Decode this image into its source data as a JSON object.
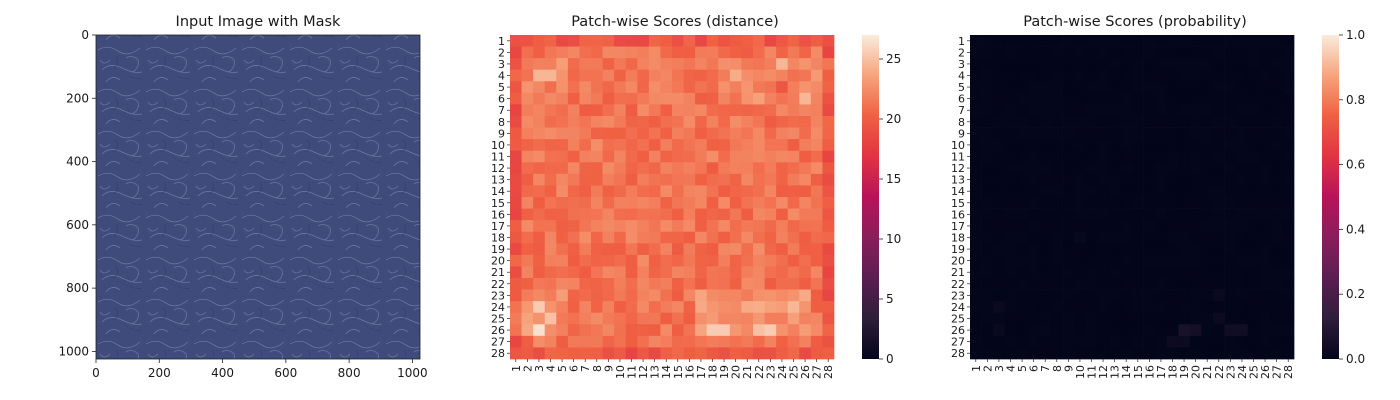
{
  "chart_data": [
    {
      "type": "image",
      "title": "Input Image with Mask",
      "xlim": [
        0,
        1024
      ],
      "ylim": [
        1024,
        0
      ],
      "xticks": [
        0,
        200,
        400,
        600,
        800,
        1000
      ],
      "yticks": [
        0,
        200,
        400,
        600,
        800,
        1000
      ],
      "xtick_labels": [
        "0",
        "200",
        "400",
        "600",
        "800",
        "1000"
      ],
      "ytick_labels": [
        "0",
        "200",
        "400",
        "600",
        "800",
        "1000"
      ],
      "image_color": "#3e4a7a",
      "texture_color": "#9aa4c8"
    },
    {
      "type": "heatmap",
      "title": "Patch-wise Scores (distance)",
      "rows": 28,
      "cols": 28,
      "row_labels": [
        "1",
        "2",
        "3",
        "4",
        "5",
        "6",
        "7",
        "8",
        "9",
        "10",
        "11",
        "12",
        "13",
        "14",
        "15",
        "16",
        "17",
        "18",
        "19",
        "20",
        "21",
        "22",
        "23",
        "24",
        "25",
        "26",
        "27",
        "28"
      ],
      "col_labels": [
        "1",
        "2",
        "3",
        "4",
        "5",
        "6",
        "7",
        "8",
        "9",
        "10",
        "11",
        "12",
        "13",
        "14",
        "15",
        "16",
        "17",
        "18",
        "19",
        "20",
        "21",
        "22",
        "23",
        "24",
        "25",
        "26",
        "27",
        "28"
      ],
      "colorbar": {
        "min": 0,
        "max": 27,
        "ticks": [
          0,
          5,
          10,
          15,
          20,
          25
        ],
        "tick_labels": [
          "0",
          "5",
          "10",
          "15",
          "20",
          "25"
        ]
      },
      "colormap": "rocket",
      "value_range": [
        16.5,
        26.5
      ],
      "hotspots": [
        {
          "row": 26,
          "col": 3,
          "value": 26.5
        },
        {
          "row": 24,
          "col": 3,
          "value": 25.5
        },
        {
          "row": 25,
          "col": 4,
          "value": 25.0
        },
        {
          "row": 26,
          "col": 18,
          "value": 25.5
        },
        {
          "row": 26,
          "col": 19,
          "value": 25.5
        },
        {
          "row": 26,
          "col": 22,
          "value": 25.0
        },
        {
          "row": 26,
          "col": 23,
          "value": 25.5
        },
        {
          "row": 4,
          "col": 3,
          "value": 24.5
        },
        {
          "row": 4,
          "col": 4,
          "value": 24.5
        },
        {
          "row": 3,
          "col": 24,
          "value": 24.5
        },
        {
          "row": 6,
          "col": 26,
          "value": 24.5
        },
        {
          "row": 4,
          "col": 20,
          "value": 24.0
        },
        {
          "row": 24,
          "col": 25,
          "value": 24.5
        },
        {
          "row": 1,
          "col": 8,
          "value": 20.5
        },
        {
          "row": 1,
          "col": 13,
          "value": 20.5
        },
        {
          "row": 13,
          "col": 2,
          "value": 20.0
        },
        {
          "row": 12,
          "col": 28,
          "value": 19.5
        },
        {
          "row": 16,
          "col": 28,
          "value": 19.5
        },
        {
          "row": 5,
          "col": 24,
          "value": 19.5
        }
      ]
    },
    {
      "type": "heatmap",
      "title": "Patch-wise Scores (probability)",
      "rows": 28,
      "cols": 28,
      "row_labels": [
        "1",
        "2",
        "3",
        "4",
        "5",
        "6",
        "7",
        "8",
        "9",
        "10",
        "11",
        "12",
        "13",
        "14",
        "15",
        "16",
        "17",
        "18",
        "19",
        "20",
        "21",
        "22",
        "23",
        "24",
        "25",
        "26",
        "27",
        "28"
      ],
      "col_labels": [
        "1",
        "2",
        "3",
        "4",
        "5",
        "6",
        "7",
        "8",
        "9",
        "10",
        "11",
        "12",
        "13",
        "14",
        "15",
        "16",
        "17",
        "18",
        "19",
        "20",
        "21",
        "22",
        "23",
        "24",
        "25",
        "26",
        "27",
        "28"
      ],
      "colorbar": {
        "min": 0.0,
        "max": 1.0,
        "ticks": [
          0.0,
          0.2,
          0.4,
          0.6,
          0.8,
          1.0
        ],
        "tick_labels": [
          "0.0",
          "0.2",
          "0.4",
          "0.6",
          "0.8",
          "1.0"
        ]
      },
      "colormap": "rocket",
      "base_value": 0.0,
      "hotspots": [
        {
          "row": 26,
          "col": 19,
          "value": 0.06
        },
        {
          "row": 26,
          "col": 20,
          "value": 0.05
        },
        {
          "row": 26,
          "col": 23,
          "value": 0.04
        },
        {
          "row": 26,
          "col": 24,
          "value": 0.04
        },
        {
          "row": 27,
          "col": 18,
          "value": 0.03
        },
        {
          "row": 27,
          "col": 19,
          "value": 0.03
        },
        {
          "row": 25,
          "col": 22,
          "value": 0.025
        },
        {
          "row": 23,
          "col": 22,
          "value": 0.02
        },
        {
          "row": 24,
          "col": 3,
          "value": 0.02
        },
        {
          "row": 26,
          "col": 3,
          "value": 0.02
        },
        {
          "row": 18,
          "col": 10,
          "value": 0.015
        },
        {
          "row": 26,
          "col": 7,
          "value": 0.01
        }
      ]
    }
  ]
}
